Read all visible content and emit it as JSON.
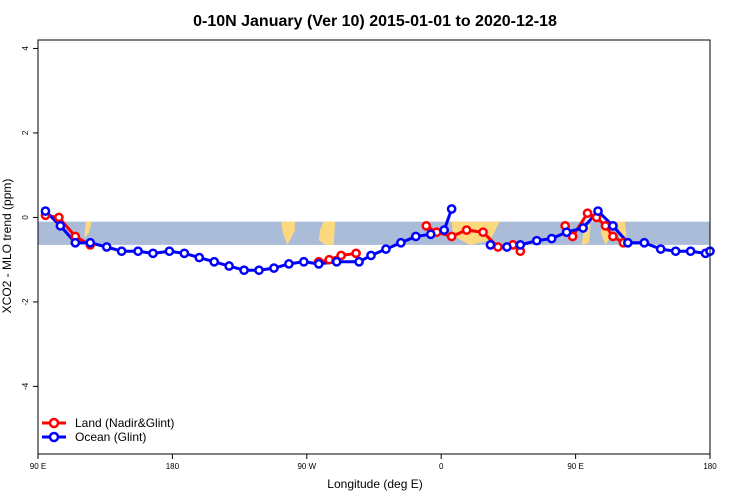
{
  "chart_data": {
    "type": "line",
    "title": "0-10N January (Ver 10)   2015-01-01 to 2020-12-18",
    "xlabel": "Longitude (deg E)",
    "ylabel": "XCO2 - MLO trend (ppm)",
    "x_axis": {
      "ticks": [
        {
          "value": 90,
          "label": "90 E"
        },
        {
          "value": 180,
          "label": "180"
        },
        {
          "value": 270,
          "label": "90 W"
        },
        {
          "value": 360,
          "label": "0"
        },
        {
          "value": 450,
          "label": "90 E"
        },
        {
          "value": 540,
          "label": "180"
        }
      ],
      "xlim": [
        90,
        540
      ]
    },
    "y_axis": {
      "ticks": [
        -4,
        -2,
        0,
        2,
        4
      ],
      "ylim": [
        -5.6,
        4.2
      ]
    },
    "land_band": {
      "y": [
        -0.65,
        -0.1
      ],
      "ocean_color": "#aabcd8",
      "land_color": "#fcd97f"
    },
    "legend": {
      "position": "bottom-left"
    },
    "series": [
      {
        "name": "Land (Nadir&Glint)",
        "color": "#ff0000",
        "points": [
          [
            95,
            0.05
          ],
          [
            104,
            0.0
          ],
          [
            115,
            -0.45
          ],
          [
            125,
            -0.65
          ],
          [
            278,
            -1.05
          ],
          [
            285,
            -1.0
          ],
          [
            293,
            -0.9
          ],
          [
            303,
            -0.85
          ],
          [
            350,
            -0.2
          ],
          [
            357,
            -0.35
          ],
          [
            367,
            -0.45
          ],
          [
            377,
            -0.3
          ],
          [
            388,
            -0.35
          ],
          [
            398,
            -0.7
          ],
          [
            408,
            -0.65
          ],
          [
            413,
            -0.8
          ],
          [
            443,
            -0.2
          ],
          [
            448,
            -0.45
          ],
          [
            458,
            0.1
          ],
          [
            464,
            0.0
          ],
          [
            470,
            -0.2
          ],
          [
            475,
            -0.45
          ],
          [
            482,
            -0.6
          ]
        ],
        "segments": [
          [
            0,
            4
          ],
          [
            4,
            8
          ],
          [
            8,
            16
          ],
          [
            16,
            23
          ]
        ]
      },
      {
        "name": "Ocean (Glint)",
        "color": "#0000ff",
        "points": [
          [
            95,
            0.15
          ],
          [
            105,
            -0.2
          ],
          [
            115,
            -0.6
          ],
          [
            125,
            -0.6
          ],
          [
            136,
            -0.7
          ],
          [
            146,
            -0.8
          ],
          [
            157,
            -0.8
          ],
          [
            167,
            -0.85
          ],
          [
            178,
            -0.8
          ],
          [
            188,
            -0.85
          ],
          [
            198,
            -0.95
          ],
          [
            208,
            -1.05
          ],
          [
            218,
            -1.15
          ],
          [
            228,
            -1.25
          ],
          [
            238,
            -1.25
          ],
          [
            248,
            -1.2
          ],
          [
            258,
            -1.1
          ],
          [
            268,
            -1.05
          ],
          [
            278,
            -1.1
          ],
          [
            290,
            -1.05
          ],
          [
            305,
            -1.05
          ],
          [
            313,
            -0.9
          ],
          [
            323,
            -0.75
          ],
          [
            333,
            -0.6
          ],
          [
            343,
            -0.45
          ],
          [
            353,
            -0.4
          ],
          [
            362,
            -0.3
          ],
          [
            367,
            0.2
          ],
          [
            393,
            -0.65
          ],
          [
            404,
            -0.7
          ],
          [
            413,
            -0.65
          ],
          [
            424,
            -0.55
          ],
          [
            434,
            -0.5
          ],
          [
            444,
            -0.35
          ],
          [
            455,
            -0.25
          ],
          [
            465,
            0.15
          ],
          [
            475,
            -0.2
          ],
          [
            485,
            -0.6
          ],
          [
            496,
            -0.6
          ],
          [
            507,
            -0.75
          ],
          [
            517,
            -0.8
          ],
          [
            527,
            -0.8
          ],
          [
            537,
            -0.85
          ],
          [
            540,
            -0.8
          ]
        ],
        "segments": [
          [
            0,
            28
          ],
          [
            28,
            44
          ]
        ]
      }
    ]
  }
}
